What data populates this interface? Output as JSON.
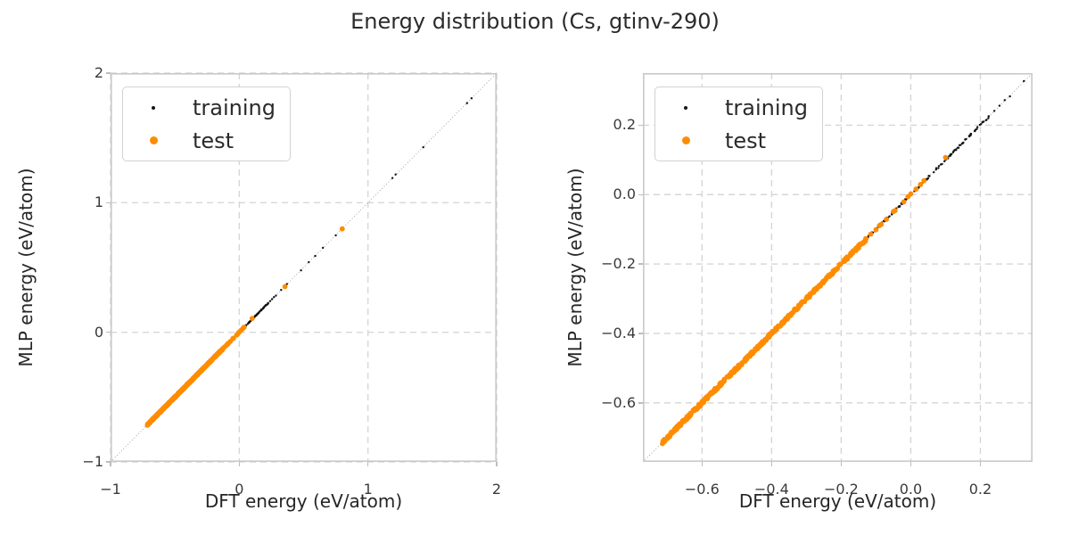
{
  "title": "Energy distribution (Cs, gtinv-290)",
  "colors": {
    "training": "#141414",
    "test": "#ff8c00",
    "grid": "#d6d6d6",
    "spine": "#c9c9c9",
    "diagonal": "#8f8f8f",
    "title_text": "#2b2b2b",
    "label_text": "#262626",
    "tick_text": "#3a3a3a"
  },
  "legend": {
    "items": [
      {
        "label": "training",
        "series": "training"
      },
      {
        "label": "test",
        "series": "test"
      }
    ]
  },
  "series": {
    "training": {
      "label": "training",
      "color": "#141414",
      "radius_px": 1.2,
      "jitter": 0.003,
      "dense_segments": [
        {
          "from": -0.3,
          "to": 0.225,
          "count": 230
        }
      ],
      "points": [
        [
          0.24,
          0.241
        ],
        [
          0.255,
          0.256
        ],
        [
          0.27,
          0.272
        ],
        [
          0.285,
          0.283
        ],
        [
          0.325,
          0.327
        ],
        [
          0.37,
          0.372
        ],
        [
          0.48,
          0.478
        ],
        [
          0.54,
          0.541
        ],
        [
          0.59,
          0.589
        ],
        [
          0.65,
          0.652
        ],
        [
          0.75,
          0.748
        ],
        [
          1.19,
          1.19
        ],
        [
          1.215,
          1.218
        ],
        [
          1.43,
          1.428
        ],
        [
          1.77,
          1.768
        ],
        [
          1.805,
          1.806
        ]
      ]
    },
    "test": {
      "label": "test",
      "color": "#ff8c00",
      "radius_px": 2.9,
      "jitter": 0.004,
      "dense_segments": [
        {
          "from": -0.715,
          "to": -0.128,
          "count": 380
        }
      ],
      "points": [
        [
          -0.115,
          -0.114
        ],
        [
          -0.1,
          -0.101
        ],
        [
          -0.09,
          -0.089
        ],
        [
          -0.085,
          -0.086
        ],
        [
          -0.07,
          -0.071
        ],
        [
          -0.05,
          -0.049
        ],
        [
          -0.045,
          -0.046
        ],
        [
          -0.02,
          -0.021
        ],
        [
          -0.008,
          -0.006
        ],
        [
          0.0,
          0.002
        ],
        [
          0.015,
          0.016
        ],
        [
          0.028,
          0.029
        ],
        [
          0.038,
          0.04
        ],
        [
          0.1,
          0.107
        ],
        [
          0.355,
          0.352
        ],
        [
          0.8,
          0.798
        ]
      ]
    }
  },
  "chart_data": [
    {
      "type": "scatter",
      "xlabel": "DFT energy (eV/atom)",
      "ylabel": "MLP energy (eV/atom)",
      "xlim": [
        -1,
        2
      ],
      "ylim": [
        -1,
        2
      ],
      "xticks": [
        {
          "v": -1,
          "label": "−1"
        },
        {
          "v": 0,
          "label": "0"
        },
        {
          "v": 1,
          "label": "1"
        },
        {
          "v": 2,
          "label": "2"
        }
      ],
      "yticks": [
        {
          "v": 2,
          "label": "2"
        },
        {
          "v": 1,
          "label": "1"
        },
        {
          "v": 0,
          "label": "0"
        },
        {
          "v": -1,
          "label": "−1"
        }
      ],
      "grid": "dashed",
      "diagonal": true,
      "legend_position": "upper left",
      "series": [
        "training",
        "test"
      ]
    },
    {
      "type": "scatter",
      "xlabel": "DFT energy (eV/atom)",
      "ylabel": "MLP energy (eV/atom)",
      "xlim": [
        -0.77,
        0.35
      ],
      "ylim": [
        -0.77,
        0.35
      ],
      "xticks": [
        {
          "v": -0.6,
          "label": "−0.6"
        },
        {
          "v": -0.4,
          "label": "−0.4"
        },
        {
          "v": -0.2,
          "label": "−0.2"
        },
        {
          "v": 0.0,
          "label": "0.0"
        },
        {
          "v": 0.2,
          "label": "0.2"
        }
      ],
      "yticks": [
        {
          "v": 0.2,
          "label": "0.2"
        },
        {
          "v": 0.0,
          "label": "0.0"
        },
        {
          "v": -0.2,
          "label": "−0.2"
        },
        {
          "v": -0.4,
          "label": "−0.4"
        },
        {
          "v": -0.6,
          "label": "−0.6"
        }
      ],
      "grid": "dashed",
      "diagonal": true,
      "legend_position": "upper left",
      "series": [
        "training",
        "test"
      ]
    }
  ]
}
